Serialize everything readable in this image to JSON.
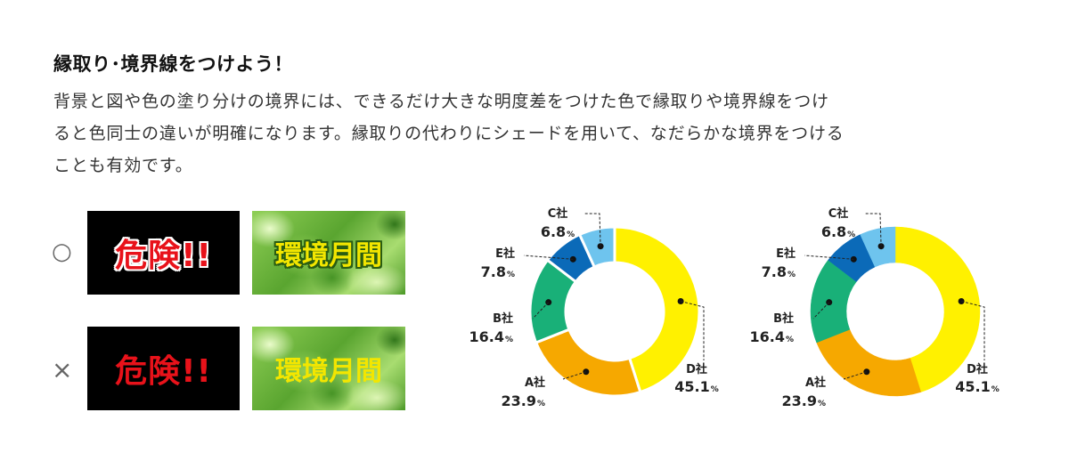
{
  "section": {
    "title": "縁取り･境界線をつけよう！",
    "description": [
      "背景と図や色の塗り分けの境界には、できるだけ大きな明度差をつけた色で縁取りや境界線をつけ",
      "ると色同士の違いが明確になります。縁取りの代わりにシェードを用いて、なだらかな境界をつける",
      "ことも有効です。"
    ]
  },
  "examples": {
    "good_mark": "○",
    "bad_mark": "×",
    "danger_text": "危険!!",
    "env_text": "環境月間",
    "colors": {
      "danger_red": "#e8121a",
      "env_yellow": "#f3e600",
      "outline_white": "#ffffff",
      "shade_green": "#2a5d12"
    }
  },
  "chart_data": [
    {
      "type": "pie",
      "variant": "donut",
      "boundary": "white border between slices",
      "labels": [
        "D社",
        "A社",
        "B社",
        "E社",
        "C社"
      ],
      "values": [
        45.1,
        23.9,
        16.4,
        7.8,
        6.8
      ],
      "value_labels": [
        "45.1",
        "23.9",
        "16.4",
        "7.8",
        "6.8"
      ],
      "unit": "%",
      "colors": [
        "#fff100",
        "#f6a800",
        "#19b078",
        "#0b6ab8",
        "#6ec4ee"
      ]
    },
    {
      "type": "pie",
      "variant": "donut",
      "boundary": "none",
      "labels": [
        "D社",
        "A社",
        "B社",
        "E社",
        "C社"
      ],
      "values": [
        45.1,
        23.9,
        16.4,
        7.8,
        6.8
      ],
      "value_labels": [
        "45.1",
        "23.9",
        "16.4",
        "7.8",
        "6.8"
      ],
      "unit": "%",
      "colors": [
        "#fff100",
        "#f6a800",
        "#19b078",
        "#0b6ab8",
        "#6ec4ee"
      ]
    }
  ]
}
